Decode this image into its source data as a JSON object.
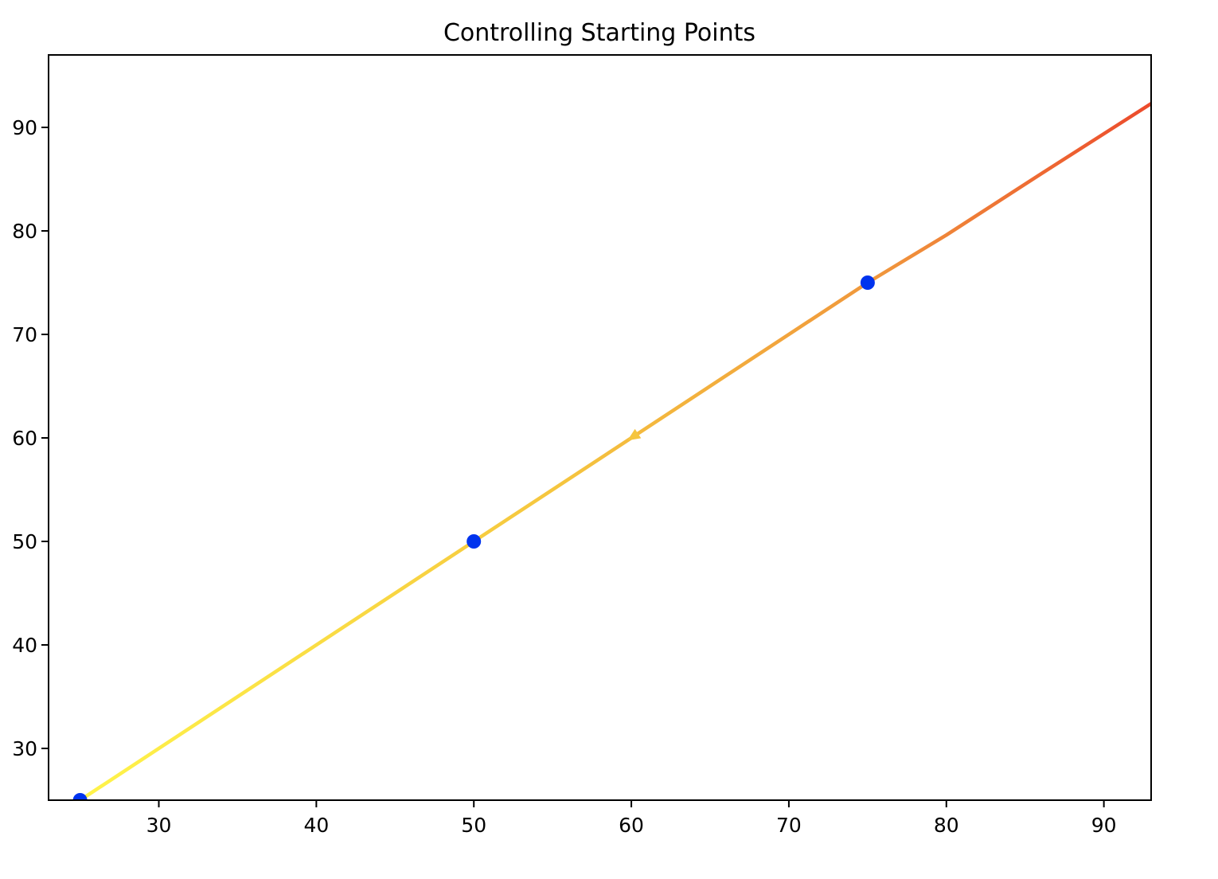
{
  "chart_data": {
    "type": "line",
    "title": "Controlling Starting Points",
    "xlabel": "",
    "ylabel": "",
    "xlim": [
      23,
      93
    ],
    "ylim": [
      25,
      97
    ],
    "xticks": [
      30,
      40,
      50,
      60,
      70,
      80,
      90
    ],
    "yticks": [
      30,
      40,
      50,
      60,
      70,
      80,
      90
    ],
    "grid": false,
    "streamline": {
      "description_colormap": "autumn_r",
      "colors": [
        "#fff44a",
        "#f5c53e",
        "#f0963c",
        "#ec4a2c"
      ],
      "points": [
        {
          "x": 25,
          "y": 25
        },
        {
          "x": 30,
          "y": 30
        },
        {
          "x": 40,
          "y": 40
        },
        {
          "x": 50,
          "y": 50
        },
        {
          "x": 60,
          "y": 60
        },
        {
          "x": 70,
          "y": 70
        },
        {
          "x": 75,
          "y": 75
        },
        {
          "x": 80,
          "y": 79.6
        },
        {
          "x": 86,
          "y": 85.5
        },
        {
          "x": 93,
          "y": 92.3
        }
      ],
      "arrow_at": {
        "x": 60,
        "y": 60
      }
    },
    "start_points": {
      "color": "#0033ee",
      "points": [
        {
          "x": 25,
          "y": 25
        },
        {
          "x": 50,
          "y": 50
        },
        {
          "x": 75,
          "y": 75
        }
      ]
    }
  }
}
